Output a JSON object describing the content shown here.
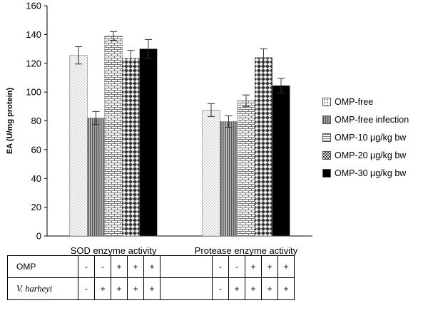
{
  "chart_data": {
    "type": "bar",
    "ylabel": "EA (U/mg protein)",
    "ylim": [
      0,
      160
    ],
    "yticks": [
      0,
      20,
      40,
      60,
      80,
      100,
      120,
      140,
      160
    ],
    "categories": [
      "SOD enzyme activity",
      "Protease enzyme activity"
    ],
    "series": [
      {
        "name": "OMP-free",
        "values": [
          125.5,
          87.5
        ],
        "errors": [
          6,
          4.5
        ],
        "pattern": "dots",
        "color": "#ffffff"
      },
      {
        "name": "OMP-free infection",
        "values": [
          82,
          79.5
        ],
        "errors": [
          4.5,
          4
        ],
        "pattern": "vlines",
        "color": "#8a8a8a"
      },
      {
        "name": "OMP-10 µg/kg bw",
        "values": [
          139,
          94
        ],
        "errors": [
          3,
          4
        ],
        "pattern": "bricks",
        "color": "#ffffff"
      },
      {
        "name": "OMP-20 µg/kg bw",
        "values": [
          123.5,
          124
        ],
        "errors": [
          5.5,
          6
        ],
        "pattern": "checker",
        "color": "#555555"
      },
      {
        "name": "OMP-30 µg/kg bw",
        "values": [
          130,
          104.5
        ],
        "errors": [
          6.5,
          5
        ],
        "pattern": "solid",
        "color": "#000000"
      }
    ],
    "grid": false,
    "legend_position": "right"
  },
  "conditions_table": {
    "rows": [
      {
        "label": "OMP",
        "sod": [
          "-",
          "-",
          "+",
          "+",
          "+"
        ],
        "protease": [
          "-",
          "-",
          "+",
          "+",
          "+"
        ]
      },
      {
        "label": "V. harheyi",
        "sod": [
          "-",
          "+",
          "+",
          "+",
          "+"
        ],
        "protease": [
          "-",
          "+",
          "+",
          "+",
          "+"
        ]
      }
    ]
  }
}
